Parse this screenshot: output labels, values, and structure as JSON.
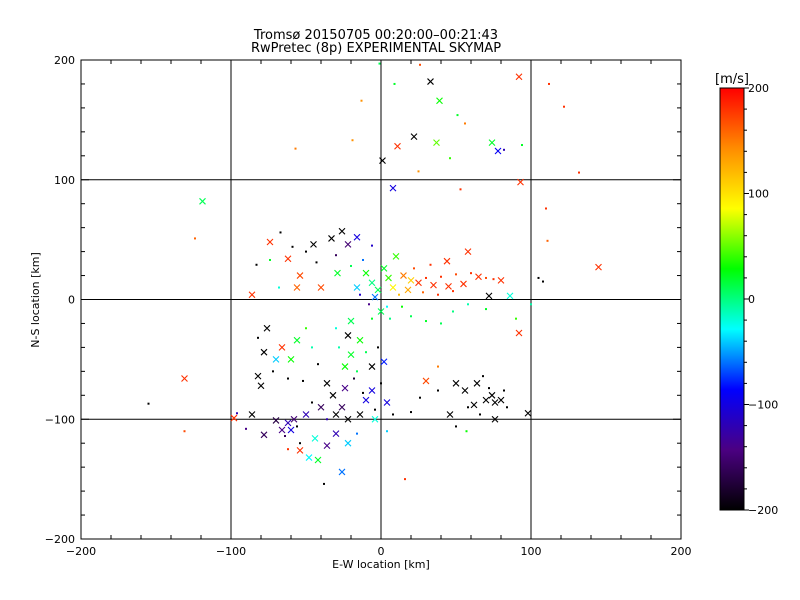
{
  "chart_data": {
    "type": "scatter",
    "title": "Tromsø 20150705 00:20:00–00:21:43",
    "subtitle": "RwPretec (8p) EXPERIMENTAL SKYMAP",
    "xlabel": "E-W location [km]",
    "ylabel": "N-S location [km]",
    "xlim": [
      -200,
      200
    ],
    "ylim": [
      -200,
      200
    ],
    "xticks": [
      "−200",
      "−100",
      "0",
      "100",
      "200"
    ],
    "yticks": [
      "−200",
      "−100",
      "0",
      "100",
      "200"
    ],
    "grid": true,
    "marker_types": [
      "dot",
      "x"
    ],
    "colorbar": {
      "label": "[m/s]",
      "range": [
        -200,
        200
      ],
      "ticks": [
        "200",
        "100",
        "0",
        "−100",
        "−200"
      ],
      "colormap": [
        "#000000",
        "#4b0082",
        "#0000ff",
        "#00ffff",
        "#00ff00",
        "#ffff00",
        "#ff8c00",
        "#ff0000"
      ]
    },
    "points": [
      {
        "x": -119,
        "y": 82,
        "v": 10,
        "m": "x"
      },
      {
        "x": -124,
        "y": 51,
        "v": 160,
        "m": "dot"
      },
      {
        "x": -131,
        "y": -66,
        "v": 180,
        "m": "x"
      },
      {
        "x": -131,
        "y": -110,
        "v": 170,
        "m": "dot"
      },
      {
        "x": -155,
        "y": -87,
        "v": -200,
        "m": "dot"
      },
      {
        "x": -98,
        "y": -99,
        "v": 180,
        "m": "x"
      },
      {
        "x": 98,
        "y": -95,
        "v": -200,
        "m": "x"
      },
      {
        "x": 145,
        "y": 27,
        "v": 180,
        "m": "x"
      },
      {
        "x": 93,
        "y": 98,
        "v": 180,
        "m": "x"
      },
      {
        "x": 92,
        "y": 186,
        "v": 180,
        "m": "x"
      },
      {
        "x": 122,
        "y": 161,
        "v": 180,
        "m": "dot"
      },
      {
        "x": 112,
        "y": 180,
        "v": 180,
        "m": "dot"
      },
      {
        "x": 110,
        "y": 76,
        "v": 180,
        "m": "dot"
      },
      {
        "x": 132,
        "y": 106,
        "v": 180,
        "m": "dot"
      },
      {
        "x": 111,
        "y": 49,
        "v": 160,
        "m": "dot"
      },
      {
        "x": -57,
        "y": 126,
        "v": 150,
        "m": "dot"
      },
      {
        "x": -13,
        "y": 166,
        "v": 140,
        "m": "dot"
      },
      {
        "x": -19,
        "y": 133,
        "v": 140,
        "m": "dot"
      },
      {
        "x": 39,
        "y": 166,
        "v": 30,
        "m": "x"
      },
      {
        "x": 37,
        "y": 131,
        "v": 50,
        "m": "x"
      },
      {
        "x": 22,
        "y": 136,
        "v": -200,
        "m": "x"
      },
      {
        "x": 11,
        "y": 128,
        "v": 180,
        "m": "x"
      },
      {
        "x": 33,
        "y": 182,
        "v": -200,
        "m": "x"
      },
      {
        "x": 1,
        "y": 116,
        "v": -200,
        "m": "x"
      },
      {
        "x": 8,
        "y": 93,
        "v": -100,
        "m": "x"
      },
      {
        "x": 46,
        "y": 118,
        "v": 40,
        "m": "dot"
      },
      {
        "x": 51,
        "y": 154,
        "v": 20,
        "m": "dot"
      },
      {
        "x": 78,
        "y": 124,
        "v": -90,
        "m": "x"
      },
      {
        "x": 74,
        "y": 131,
        "v": 20,
        "m": "x"
      },
      {
        "x": 82,
        "y": 125,
        "v": -120,
        "m": "dot"
      },
      {
        "x": 94,
        "y": 129,
        "v": 20,
        "m": "dot"
      },
      {
        "x": -1,
        "y": 197,
        "v": 10,
        "m": "dot"
      },
      {
        "x": 9,
        "y": 180,
        "v": 20,
        "m": "dot"
      },
      {
        "x": 26,
        "y": 196,
        "v": 170,
        "m": "dot"
      },
      {
        "x": 56,
        "y": 147,
        "v": 150,
        "m": "dot"
      },
      {
        "x": 25,
        "y": 107,
        "v": 140,
        "m": "dot"
      },
      {
        "x": 53,
        "y": 92,
        "v": 180,
        "m": "dot"
      },
      {
        "x": -67,
        "y": 56,
        "v": -200,
        "m": "dot"
      },
      {
        "x": -59,
        "y": 44,
        "v": -200,
        "m": "dot"
      },
      {
        "x": -50,
        "y": 40,
        "v": -200,
        "m": "dot"
      },
      {
        "x": -62,
        "y": 34,
        "v": 180,
        "m": "x"
      },
      {
        "x": -74,
        "y": 48,
        "v": 180,
        "m": "x"
      },
      {
        "x": -54,
        "y": 20,
        "v": 170,
        "m": "x"
      },
      {
        "x": -45,
        "y": 46,
        "v": -200,
        "m": "x"
      },
      {
        "x": -33,
        "y": 51,
        "v": -200,
        "m": "x"
      },
      {
        "x": -26,
        "y": 57,
        "v": -200,
        "m": "x"
      },
      {
        "x": -22,
        "y": 46,
        "v": -150,
        "m": "x"
      },
      {
        "x": -16,
        "y": 52,
        "v": -100,
        "m": "x"
      },
      {
        "x": -30,
        "y": 37,
        "v": -160,
        "m": "dot"
      },
      {
        "x": -43,
        "y": 31,
        "v": -200,
        "m": "dot"
      },
      {
        "x": -29,
        "y": 22,
        "v": 20,
        "m": "x"
      },
      {
        "x": -20,
        "y": 28,
        "v": 10,
        "m": "dot"
      },
      {
        "x": -12,
        "y": 33,
        "v": -60,
        "m": "dot"
      },
      {
        "x": -6,
        "y": 45,
        "v": -110,
        "m": "dot"
      },
      {
        "x": -83,
        "y": 29,
        "v": -200,
        "m": "dot"
      },
      {
        "x": -86,
        "y": 4,
        "v": 180,
        "m": "x"
      },
      {
        "x": -56,
        "y": 10,
        "v": 160,
        "m": "x"
      },
      {
        "x": -40,
        "y": 10,
        "v": 170,
        "m": "x"
      },
      {
        "x": -68,
        "y": 10,
        "v": -20,
        "m": "dot"
      },
      {
        "x": -74,
        "y": 33,
        "v": 20,
        "m": "dot"
      },
      {
        "x": 25,
        "y": 14,
        "v": 180,
        "m": "x"
      },
      {
        "x": 30,
        "y": 18,
        "v": 180,
        "m": "dot"
      },
      {
        "x": 35,
        "y": 12,
        "v": 180,
        "m": "x"
      },
      {
        "x": 40,
        "y": 19,
        "v": 180,
        "m": "dot"
      },
      {
        "x": 45,
        "y": 11,
        "v": 180,
        "m": "x"
      },
      {
        "x": 50,
        "y": 21,
        "v": 170,
        "m": "dot"
      },
      {
        "x": 55,
        "y": 13,
        "v": 180,
        "m": "x"
      },
      {
        "x": 60,
        "y": 22,
        "v": 180,
        "m": "dot"
      },
      {
        "x": 65,
        "y": 19,
        "v": 180,
        "m": "x"
      },
      {
        "x": 70,
        "y": 18,
        "v": 170,
        "m": "dot"
      },
      {
        "x": 75,
        "y": 17,
        "v": 180,
        "m": "dot"
      },
      {
        "x": 80,
        "y": 16,
        "v": 180,
        "m": "x"
      },
      {
        "x": 58,
        "y": 40,
        "v": 180,
        "m": "x"
      },
      {
        "x": 44,
        "y": 32,
        "v": 180,
        "m": "x"
      },
      {
        "x": 33,
        "y": 29,
        "v": 180,
        "m": "dot"
      },
      {
        "x": 22,
        "y": 26,
        "v": 170,
        "m": "dot"
      },
      {
        "x": 15,
        "y": 20,
        "v": 150,
        "m": "x"
      },
      {
        "x": 18,
        "y": 8,
        "v": 130,
        "m": "x"
      },
      {
        "x": 28,
        "y": 6,
        "v": 160,
        "m": "dot"
      },
      {
        "x": 38,
        "y": 4,
        "v": 180,
        "m": "dot"
      },
      {
        "x": 48,
        "y": 7,
        "v": 180,
        "m": "dot"
      },
      {
        "x": 12,
        "y": 4,
        "v": 120,
        "m": "dot"
      },
      {
        "x": 20,
        "y": 16,
        "v": 110,
        "m": "x"
      },
      {
        "x": 8,
        "y": 10,
        "v": 90,
        "m": "x"
      },
      {
        "x": 5,
        "y": 18,
        "v": 40,
        "m": "x"
      },
      {
        "x": -2,
        "y": 8,
        "v": 10,
        "m": "x"
      },
      {
        "x": -6,
        "y": 14,
        "v": 0,
        "m": "x"
      },
      {
        "x": -10,
        "y": 22,
        "v": 30,
        "m": "x"
      },
      {
        "x": -16,
        "y": 10,
        "v": -40,
        "m": "x"
      },
      {
        "x": -4,
        "y": 2,
        "v": -60,
        "m": "x"
      },
      {
        "x": 2,
        "y": 26,
        "v": 20,
        "m": "x"
      },
      {
        "x": 10,
        "y": 36,
        "v": 40,
        "m": "x"
      },
      {
        "x": -14,
        "y": 4,
        "v": -110,
        "m": "dot"
      },
      {
        "x": -8,
        "y": -4,
        "v": -140,
        "m": "dot"
      },
      {
        "x": 4,
        "y": -6,
        "v": -30,
        "m": "dot"
      },
      {
        "x": 0,
        "y": -10,
        "v": 10,
        "m": "x"
      },
      {
        "x": -6,
        "y": -16,
        "v": 20,
        "m": "dot"
      },
      {
        "x": 6,
        "y": -16,
        "v": 0,
        "m": "dot"
      },
      {
        "x": 14,
        "y": -6,
        "v": 30,
        "m": "dot"
      },
      {
        "x": 20,
        "y": -14,
        "v": 10,
        "m": "dot"
      },
      {
        "x": 30,
        "y": -18,
        "v": 20,
        "m": "dot"
      },
      {
        "x": 40,
        "y": -20,
        "v": 10,
        "m": "dot"
      },
      {
        "x": 48,
        "y": -10,
        "v": 0,
        "m": "dot"
      },
      {
        "x": 58,
        "y": -4,
        "v": -10,
        "m": "dot"
      },
      {
        "x": 70,
        "y": -8,
        "v": 20,
        "m": "dot"
      },
      {
        "x": 86,
        "y": 3,
        "v": -20,
        "m": "x"
      },
      {
        "x": 72,
        "y": 3,
        "v": -200,
        "m": "x"
      },
      {
        "x": 100,
        "y": -4,
        "v": -10,
        "m": "dot"
      },
      {
        "x": 90,
        "y": -16,
        "v": 40,
        "m": "dot"
      },
      {
        "x": 92,
        "y": -28,
        "v": 180,
        "m": "x"
      },
      {
        "x": 105,
        "y": 18,
        "v": -200,
        "m": "dot"
      },
      {
        "x": 108,
        "y": 15,
        "v": -200,
        "m": "dot"
      },
      {
        "x": -20,
        "y": -18,
        "v": 10,
        "m": "x"
      },
      {
        "x": -30,
        "y": -24,
        "v": -20,
        "m": "dot"
      },
      {
        "x": -22,
        "y": -30,
        "v": -200,
        "m": "x"
      },
      {
        "x": -14,
        "y": -34,
        "v": 30,
        "m": "x"
      },
      {
        "x": -28,
        "y": -40,
        "v": -10,
        "m": "dot"
      },
      {
        "x": -20,
        "y": -46,
        "v": 20,
        "m": "x"
      },
      {
        "x": -10,
        "y": -44,
        "v": 10,
        "m": "dot"
      },
      {
        "x": -2,
        "y": -40,
        "v": -200,
        "m": "dot"
      },
      {
        "x": -24,
        "y": -56,
        "v": 30,
        "m": "x"
      },
      {
        "x": -16,
        "y": -60,
        "v": 10,
        "m": "dot"
      },
      {
        "x": -6,
        "y": -56,
        "v": -200,
        "m": "x"
      },
      {
        "x": 2,
        "y": -52,
        "v": -80,
        "m": "x"
      },
      {
        "x": -50,
        "y": -24,
        "v": 40,
        "m": "dot"
      },
      {
        "x": -56,
        "y": -34,
        "v": 20,
        "m": "x"
      },
      {
        "x": -46,
        "y": -40,
        "v": -10,
        "m": "dot"
      },
      {
        "x": -60,
        "y": -50,
        "v": 30,
        "m": "x"
      },
      {
        "x": -42,
        "y": -54,
        "v": -200,
        "m": "dot"
      },
      {
        "x": -66,
        "y": -40,
        "v": 180,
        "m": "x"
      },
      {
        "x": -76,
        "y": -24,
        "v": -200,
        "m": "x"
      },
      {
        "x": -82,
        "y": -32,
        "v": -200,
        "m": "dot"
      },
      {
        "x": -78,
        "y": -44,
        "v": -200,
        "m": "x"
      },
      {
        "x": -70,
        "y": -50,
        "v": -40,
        "m": "x"
      },
      {
        "x": -72,
        "y": -60,
        "v": -200,
        "m": "dot"
      },
      {
        "x": -62,
        "y": -66,
        "v": -200,
        "m": "dot"
      },
      {
        "x": -82,
        "y": -64,
        "v": -200,
        "m": "x"
      },
      {
        "x": -80,
        "y": -72,
        "v": -200,
        "m": "x"
      },
      {
        "x": -52,
        "y": -68,
        "v": -200,
        "m": "dot"
      },
      {
        "x": -96,
        "y": -95,
        "v": -120,
        "m": "dot"
      },
      {
        "x": -86,
        "y": -96,
        "v": -200,
        "m": "x"
      },
      {
        "x": -90,
        "y": -108,
        "v": -140,
        "m": "dot"
      },
      {
        "x": -78,
        "y": -113,
        "v": -160,
        "m": "x"
      },
      {
        "x": -62,
        "y": -103,
        "v": -120,
        "m": "x"
      },
      {
        "x": -66,
        "y": -109,
        "v": -140,
        "m": "x"
      },
      {
        "x": -60,
        "y": -109,
        "v": -100,
        "m": "x"
      },
      {
        "x": -56,
        "y": -106,
        "v": -200,
        "m": "dot"
      },
      {
        "x": -70,
        "y": -101,
        "v": -170,
        "m": "x"
      },
      {
        "x": -58,
        "y": -100,
        "v": -150,
        "m": "x"
      },
      {
        "x": -64,
        "y": -114,
        "v": -160,
        "m": "dot"
      },
      {
        "x": -54,
        "y": -120,
        "v": -200,
        "m": "dot"
      },
      {
        "x": -50,
        "y": -96,
        "v": -120,
        "m": "x"
      },
      {
        "x": -46,
        "y": -86,
        "v": -200,
        "m": "dot"
      },
      {
        "x": -40,
        "y": -90,
        "v": -160,
        "m": "x"
      },
      {
        "x": -36,
        "y": -100,
        "v": -120,
        "m": "dot"
      },
      {
        "x": -30,
        "y": -96,
        "v": -200,
        "m": "x"
      },
      {
        "x": -26,
        "y": -90,
        "v": -160,
        "m": "x"
      },
      {
        "x": -22,
        "y": -100,
        "v": -200,
        "m": "x"
      },
      {
        "x": -14,
        "y": -96,
        "v": -200,
        "m": "x"
      },
      {
        "x": -10,
        "y": -84,
        "v": -100,
        "m": "x"
      },
      {
        "x": -4,
        "y": -92,
        "v": -200,
        "m": "dot"
      },
      {
        "x": -32,
        "y": -80,
        "v": -200,
        "m": "x"
      },
      {
        "x": -36,
        "y": -70,
        "v": -200,
        "m": "x"
      },
      {
        "x": -24,
        "y": -74,
        "v": -140,
        "m": "x"
      },
      {
        "x": -18,
        "y": -66,
        "v": -180,
        "m": "dot"
      },
      {
        "x": -12,
        "y": -78,
        "v": -200,
        "m": "dot"
      },
      {
        "x": -6,
        "y": -76,
        "v": -100,
        "m": "x"
      },
      {
        "x": 0,
        "y": -70,
        "v": -200,
        "m": "dot"
      },
      {
        "x": 4,
        "y": -86,
        "v": -100,
        "m": "x"
      },
      {
        "x": 8,
        "y": -96,
        "v": -200,
        "m": "dot"
      },
      {
        "x": -30,
        "y": -112,
        "v": -120,
        "m": "x"
      },
      {
        "x": -36,
        "y": -122,
        "v": -140,
        "m": "x"
      },
      {
        "x": -44,
        "y": -116,
        "v": -20,
        "m": "x"
      },
      {
        "x": -48,
        "y": -132,
        "v": -30,
        "m": "x"
      },
      {
        "x": -42,
        "y": -134,
        "v": 20,
        "m": "x"
      },
      {
        "x": -54,
        "y": -126,
        "v": 180,
        "m": "x"
      },
      {
        "x": -62,
        "y": -125,
        "v": 180,
        "m": "dot"
      },
      {
        "x": -22,
        "y": -120,
        "v": -40,
        "m": "x"
      },
      {
        "x": -26,
        "y": -144,
        "v": -60,
        "m": "x"
      },
      {
        "x": -38,
        "y": -154,
        "v": -200,
        "m": "dot"
      },
      {
        "x": -16,
        "y": -112,
        "v": -60,
        "m": "dot"
      },
      {
        "x": 4,
        "y": -110,
        "v": -40,
        "m": "dot"
      },
      {
        "x": -4,
        "y": -100,
        "v": -20,
        "m": "x"
      },
      {
        "x": 16,
        "y": -150,
        "v": 180,
        "m": "dot"
      },
      {
        "x": 30,
        "y": -68,
        "v": 170,
        "m": "x"
      },
      {
        "x": 38,
        "y": -56,
        "v": 150,
        "m": "dot"
      },
      {
        "x": 50,
        "y": -70,
        "v": -200,
        "m": "x"
      },
      {
        "x": 56,
        "y": -76,
        "v": -200,
        "m": "x"
      },
      {
        "x": 62,
        "y": -88,
        "v": -200,
        "m": "x"
      },
      {
        "x": 58,
        "y": -90,
        "v": -200,
        "m": "dot"
      },
      {
        "x": 66,
        "y": -96,
        "v": -200,
        "m": "dot"
      },
      {
        "x": 70,
        "y": -84,
        "v": -200,
        "m": "x"
      },
      {
        "x": 74,
        "y": -80,
        "v": -200,
        "m": "x"
      },
      {
        "x": 76,
        "y": -86,
        "v": -200,
        "m": "x"
      },
      {
        "x": 72,
        "y": -74,
        "v": -200,
        "m": "dot"
      },
      {
        "x": 68,
        "y": -64,
        "v": -200,
        "m": "dot"
      },
      {
        "x": 82,
        "y": -76,
        "v": -200,
        "m": "dot"
      },
      {
        "x": 80,
        "y": -84,
        "v": -200,
        "m": "x"
      },
      {
        "x": 84,
        "y": -90,
        "v": -200,
        "m": "dot"
      },
      {
        "x": 76,
        "y": -100,
        "v": -200,
        "m": "x"
      },
      {
        "x": 64,
        "y": -70,
        "v": -200,
        "m": "x"
      },
      {
        "x": 57,
        "y": -110,
        "v": 30,
        "m": "dot"
      },
      {
        "x": 50,
        "y": -106,
        "v": -200,
        "m": "dot"
      },
      {
        "x": 46,
        "y": -96,
        "v": -200,
        "m": "x"
      },
      {
        "x": 38,
        "y": -76,
        "v": -200,
        "m": "dot"
      },
      {
        "x": 26,
        "y": -82,
        "v": -200,
        "m": "dot"
      },
      {
        "x": 20,
        "y": -94,
        "v": -200,
        "m": "dot"
      }
    ]
  }
}
